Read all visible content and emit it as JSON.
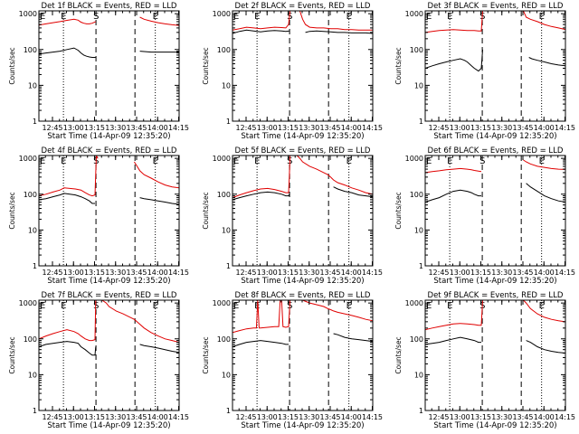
{
  "chart_data": {
    "type": "line",
    "layout": "3x3 grid",
    "xlabel": "Start Time (14-Apr-09 12:35:20)",
    "ylabel": "Counts/sec",
    "xlim_minutes_since_start": [
      0,
      100
    ],
    "x_ticks": [
      {
        "label": "12:45",
        "min": 9.67
      },
      {
        "label": "13:00",
        "min": 24.67
      },
      {
        "label": "13:15",
        "min": 39.67
      },
      {
        "label": "13:30",
        "min": 54.67
      },
      {
        "label": "13:45",
        "min": 69.67
      },
      {
        "label": "14:00",
        "min": 84.67
      },
      {
        "label": "14:15",
        "min": 99.67
      }
    ],
    "y_scale": "log",
    "ylim": [
      1,
      1200
    ],
    "y_ticks": [
      {
        "label": "1",
        "v": 1
      },
      {
        "label": "10",
        "v": 10
      },
      {
        "label": "100",
        "v": 100
      },
      {
        "label": "1000",
        "v": 1000
      }
    ],
    "series_styles": [
      {
        "key": "events",
        "color": "#000000"
      },
      {
        "key": "lld",
        "color": "#e00000"
      }
    ],
    "markers": [
      {
        "min": 17.5,
        "style": "dotted",
        "letter": "E"
      },
      {
        "min": 40.7,
        "style": "dashed",
        "letter": "S"
      },
      {
        "min": 68.5,
        "style": "dashed",
        "letter": ""
      },
      {
        "min": 83.0,
        "style": "dotted",
        "letter": "E"
      }
    ],
    "panels": [
      {
        "title": "Det 1f BLACK = Events, RED = LLD",
        "events": {
          "x": [
            0,
            5,
            10,
            15,
            20,
            25,
            28,
            30,
            32,
            34,
            36,
            38,
            40.5,
            41.5,
            42,
            55,
            67,
            69,
            70,
            72,
            75,
            80,
            85,
            90,
            95,
            100
          ],
          "y": [
            75,
            80,
            85,
            90,
            100,
            110,
            95,
            80,
            70,
            65,
            62,
            60,
            60,
            null,
            null,
            null,
            null,
            null,
            null,
            90,
            88,
            85,
            85,
            85,
            85,
            85
          ]
        },
        "lld": {
          "x": [
            0,
            5,
            10,
            15,
            20,
            25,
            28,
            30,
            32,
            34,
            36,
            38,
            40.5,
            41,
            42,
            55,
            67,
            69,
            70,
            72,
            75,
            80,
            85,
            90,
            95,
            100
          ],
          "y": [
            480,
            520,
            560,
            600,
            650,
            700,
            660,
            580,
            540,
            520,
            520,
            540,
            600,
            null,
            null,
            null,
            null,
            null,
            null,
            800,
            700,
            620,
            560,
            520,
            490,
            470
          ]
        }
      },
      {
        "title": "Det 2f BLACK = Events, RED = LLD",
        "events": {
          "x": [
            0,
            5,
            10,
            15,
            20,
            25,
            30,
            35,
            38,
            40.5,
            44,
            48,
            50,
            52,
            55,
            60,
            65,
            70,
            75,
            80,
            85,
            90,
            95,
            100
          ],
          "y": [
            280,
            320,
            350,
            330,
            310,
            330,
            340,
            330,
            320,
            330,
            null,
            null,
            null,
            300,
            320,
            330,
            320,
            310,
            300,
            300,
            290,
            290,
            290,
            280
          ]
        },
        "lld": {
          "x": [
            0,
            5,
            10,
            15,
            20,
            25,
            30,
            35,
            38,
            40,
            41,
            42,
            43,
            45,
            47,
            48,
            50,
            52,
            55,
            60,
            65,
            70,
            75,
            80,
            85,
            90,
            95,
            100
          ],
          "y": [
            350,
            380,
            420,
            400,
            380,
            400,
            420,
            410,
            400,
            500,
            3000,
            6000,
            6000,
            4000,
            2000,
            1200,
            700,
            500,
            420,
            400,
            400,
            380,
            380,
            360,
            360,
            350,
            350,
            350
          ]
        }
      },
      {
        "title": "Det 3f BLACK = Events, RED = LLD",
        "events": {
          "x": [
            0,
            5,
            10,
            15,
            20,
            25,
            28,
            30,
            33,
            35,
            38,
            40,
            41,
            42,
            55,
            67,
            69,
            70,
            72,
            74,
            76,
            80,
            85,
            90,
            95,
            100
          ],
          "y": [
            30,
            35,
            40,
            45,
            50,
            55,
            50,
            45,
            35,
            30,
            25,
            30,
            100,
            null,
            null,
            null,
            null,
            null,
            null,
            60,
            55,
            50,
            45,
            40,
            37,
            35
          ]
        },
        "lld": {
          "x": [
            0,
            5,
            10,
            15,
            20,
            25,
            30,
            35,
            38,
            40,
            41,
            42,
            50,
            55,
            60,
            65,
            67,
            68,
            70,
            72,
            75,
            80,
            85,
            90,
            95,
            100
          ],
          "y": [
            300,
            320,
            340,
            350,
            360,
            350,
            340,
            340,
            330,
            330,
            1500,
            null,
            null,
            null,
            null,
            null,
            3000,
            2000,
            1200,
            800,
            700,
            600,
            500,
            440,
            400,
            360
          ]
        }
      },
      {
        "title": "Det 4f BLACK = Events, RED = LLD",
        "events": {
          "x": [
            0,
            5,
            10,
            15,
            18,
            22,
            26,
            30,
            33,
            36,
            38,
            40,
            41,
            42,
            55,
            67,
            68,
            69,
            70,
            72,
            75,
            80,
            85,
            90,
            95,
            100
          ],
          "y": [
            70,
            75,
            85,
            95,
            105,
            100,
            95,
            85,
            75,
            65,
            55,
            55,
            null,
            null,
            null,
            null,
            null,
            null,
            null,
            80,
            75,
            70,
            65,
            60,
            55,
            52
          ]
        },
        "lld": {
          "x": [
            0,
            5,
            10,
            15,
            18,
            22,
            26,
            30,
            33,
            36,
            38,
            40,
            41,
            42,
            45,
            48,
            50,
            55,
            60,
            65,
            67,
            68,
            70,
            72,
            75,
            80,
            85,
            90,
            95,
            100
          ],
          "y": [
            90,
            100,
            115,
            130,
            150,
            145,
            140,
            130,
            110,
            95,
            90,
            95,
            5000,
            1000,
            null,
            null,
            null,
            null,
            null,
            null,
            null,
            800,
            600,
            450,
            350,
            280,
            220,
            180,
            160,
            150
          ]
        }
      },
      {
        "title": "Det 5f BLACK = Events, RED = LLD",
        "events": {
          "x": [
            0,
            5,
            10,
            15,
            20,
            25,
            30,
            35,
            38,
            40,
            40.5,
            41,
            42,
            55,
            67,
            68,
            69,
            70,
            72,
            75,
            80,
            85,
            90,
            95,
            100
          ],
          "y": [
            70,
            80,
            90,
            100,
            110,
            115,
            110,
            100,
            90,
            90,
            100,
            null,
            null,
            null,
            null,
            null,
            null,
            null,
            160,
            140,
            120,
            110,
            95,
            90,
            85
          ]
        },
        "lld": {
          "x": [
            0,
            5,
            10,
            15,
            20,
            25,
            30,
            35,
            38,
            40,
            40.5,
            41,
            42,
            46,
            48,
            50,
            55,
            60,
            65,
            68,
            70,
            72,
            75,
            80,
            85,
            90,
            95,
            100
          ],
          "y": [
            80,
            95,
            110,
            125,
            140,
            145,
            135,
            120,
            110,
            110,
            300,
            3000,
            5000,
            2000,
            1000,
            800,
            600,
            500,
            400,
            350,
            300,
            250,
            210,
            180,
            150,
            130,
            110,
            100
          ]
        }
      },
      {
        "title": "Det 6f BLACK = Events, RED = LLD",
        "events": {
          "x": [
            0,
            5,
            10,
            15,
            20,
            25,
            30,
            33,
            35,
            38,
            40,
            41,
            42,
            55,
            67,
            68,
            69,
            70,
            72,
            75,
            80,
            85,
            90,
            95,
            100
          ],
          "y": [
            60,
            70,
            80,
            100,
            120,
            130,
            120,
            110,
            100,
            90,
            90,
            null,
            null,
            null,
            null,
            null,
            null,
            null,
            200,
            160,
            120,
            90,
            75,
            65,
            60
          ]
        },
        "lld": {
          "x": [
            0,
            5,
            10,
            15,
            20,
            25,
            30,
            33,
            35,
            38,
            40,
            41,
            42,
            55,
            67,
            68,
            70,
            72,
            75,
            80,
            85,
            90,
            95,
            100
          ],
          "y": [
            400,
            430,
            450,
            480,
            500,
            520,
            500,
            480,
            460,
            440,
            430,
            null,
            null,
            null,
            null,
            null,
            900,
            800,
            700,
            600,
            560,
            520,
            500,
            490
          ]
        }
      },
      {
        "title": "Det 7f BLACK = Events, RED = LLD",
        "events": {
          "x": [
            0,
            5,
            10,
            15,
            20,
            25,
            28,
            30,
            33,
            36,
            38,
            40,
            40.5,
            41,
            42,
            55,
            67,
            68,
            69,
            70,
            72,
            75,
            80,
            85,
            90,
            95,
            100
          ],
          "y": [
            60,
            70,
            75,
            80,
            85,
            80,
            75,
            60,
            50,
            40,
            35,
            35,
            60,
            null,
            null,
            null,
            null,
            null,
            null,
            null,
            70,
            65,
            60,
            55,
            50,
            45,
            42
          ]
        },
        "lld": {
          "x": [
            0,
            5,
            10,
            15,
            20,
            25,
            28,
            30,
            33,
            36,
            38,
            40,
            40.5,
            41,
            42,
            45,
            48,
            50,
            55,
            60,
            65,
            68,
            70,
            75,
            80,
            85,
            90,
            95,
            100
          ],
          "y": [
            100,
            120,
            140,
            160,
            180,
            160,
            140,
            120,
            100,
            90,
            90,
            95,
            2000,
            5000,
            3000,
            1500,
            1000,
            800,
            600,
            500,
            400,
            350,
            300,
            200,
            150,
            120,
            100,
            90,
            80
          ]
        }
      },
      {
        "title": "Det 8f BLACK = Events, RED = LLD",
        "events": {
          "x": [
            0,
            5,
            10,
            15,
            20,
            25,
            30,
            35,
            38,
            40,
            41,
            42,
            55,
            67,
            68,
            69,
            70,
            72,
            75,
            80,
            85,
            90,
            95,
            100
          ],
          "y": [
            60,
            70,
            80,
            85,
            90,
            85,
            80,
            75,
            70,
            70,
            null,
            null,
            null,
            null,
            null,
            null,
            null,
            140,
            130,
            110,
            100,
            95,
            90,
            85
          ]
        },
        "lld": {
          "x": [
            0,
            5,
            10,
            15,
            17,
            18,
            19,
            20,
            25,
            30,
            33,
            34,
            35,
            36,
            38,
            40,
            41,
            42,
            45,
            48,
            50,
            55,
            60,
            65,
            68,
            70,
            72,
            75,
            80,
            85,
            90,
            95,
            100
          ],
          "y": [
            150,
            170,
            190,
            200,
            200,
            6000,
            200,
            200,
            210,
            220,
            220,
            6000,
            6000,
            220,
            210,
            220,
            6000,
            6000,
            4000,
            2000,
            1500,
            1000,
            900,
            800,
            700,
            650,
            600,
            550,
            500,
            450,
            400,
            350,
            320
          ]
        }
      },
      {
        "title": "Det 9f BLACK = Events, RED = LLD",
        "events": {
          "x": [
            0,
            5,
            10,
            15,
            20,
            25,
            30,
            35,
            38,
            40,
            41,
            42,
            55,
            67,
            68,
            69,
            70,
            72,
            75,
            80,
            85,
            90,
            95,
            100
          ],
          "y": [
            70,
            75,
            80,
            90,
            100,
            110,
            100,
            90,
            80,
            80,
            null,
            null,
            null,
            null,
            null,
            null,
            null,
            90,
            80,
            60,
            50,
            45,
            42,
            40
          ]
        },
        "lld": {
          "x": [
            0,
            5,
            10,
            15,
            20,
            25,
            30,
            35,
            38,
            40,
            41,
            42,
            50,
            55,
            60,
            65,
            67,
            68,
            70,
            72,
            75,
            80,
            85,
            90,
            95,
            100
          ],
          "y": [
            180,
            200,
            220,
            240,
            260,
            270,
            260,
            250,
            240,
            240,
            6000,
            null,
            null,
            null,
            null,
            null,
            6000,
            3000,
            1500,
            1000,
            700,
            500,
            400,
            350,
            320,
            300
          ]
        }
      }
    ]
  }
}
